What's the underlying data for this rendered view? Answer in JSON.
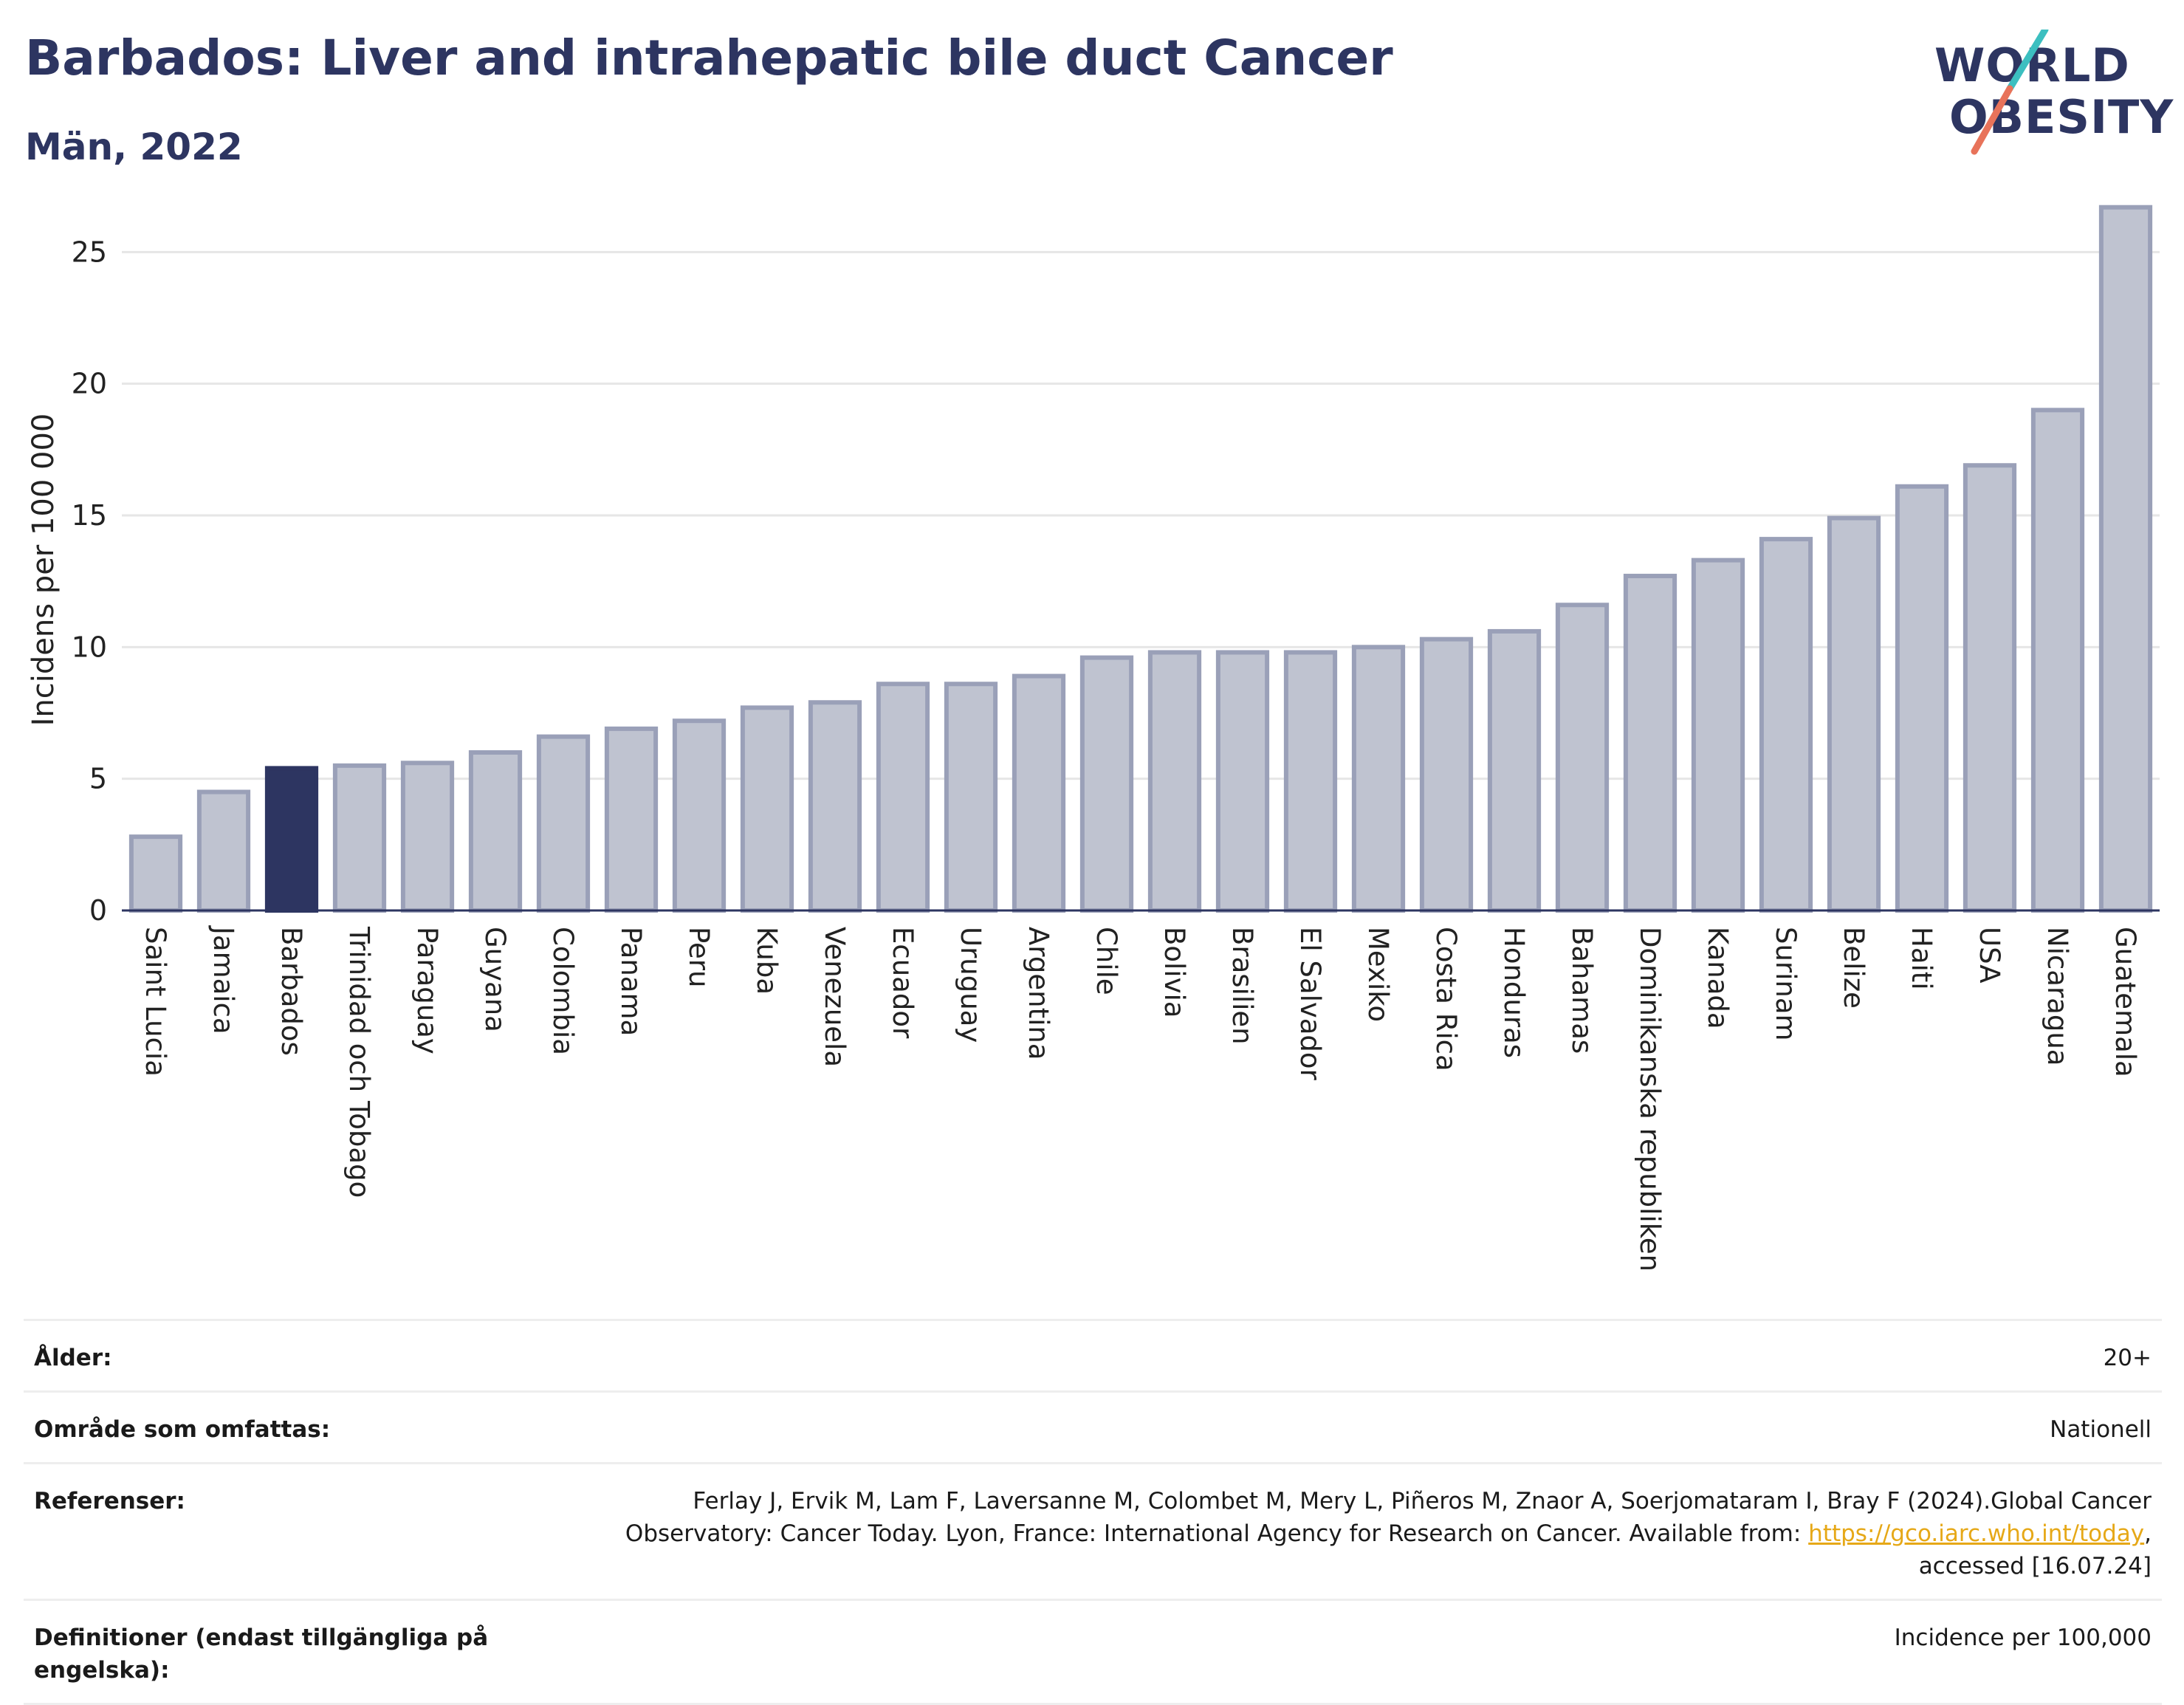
{
  "title": "Barbados: Liver and intrahepatic bile duct Cancer",
  "subtitle": "Män, 2022",
  "logo": {
    "line1": "WORLD",
    "line2": "OBESITY"
  },
  "colors": {
    "highlight": "#2d3561",
    "bar_fill": "#bfc3d0",
    "bar_stroke": "#9aa0b8",
    "title": "#2d3561",
    "link": "#e6a817",
    "logo_teal": "#3cbfc0",
    "logo_coral": "#e8735a"
  },
  "chart_data": {
    "type": "bar",
    "ylabel": "Incidens per 100 000",
    "ylim": [
      0,
      27
    ],
    "yticks": [
      0,
      5,
      10,
      15,
      20,
      25
    ],
    "highlight": "Barbados",
    "categories": [
      "Saint Lucia",
      "Jamaica",
      "Barbados",
      "Trinidad och Tobago",
      "Paraguay",
      "Guyana",
      "Colombia",
      "Panama",
      "Peru",
      "Kuba",
      "Venezuela",
      "Ecuador",
      "Uruguay",
      "Argentina",
      "Chile",
      "Bolivia",
      "Brasilien",
      "El Salvador",
      "Mexiko",
      "Costa Rica",
      "Honduras",
      "Bahamas",
      "Dominikanska republiken",
      "Kanada",
      "Surinam",
      "Belize",
      "Haiti",
      "USA",
      "Nicaragua",
      "Guatemala"
    ],
    "values": [
      2.8,
      4.5,
      5.4,
      5.5,
      5.6,
      6.0,
      6.6,
      6.9,
      7.2,
      7.7,
      7.9,
      8.6,
      8.6,
      8.9,
      9.6,
      9.8,
      9.8,
      9.8,
      10.0,
      10.3,
      10.6,
      11.6,
      12.7,
      13.3,
      14.1,
      14.9,
      16.1,
      16.9,
      19.0,
      26.7
    ],
    "grid": true
  },
  "meta": {
    "age_label": "Ålder:",
    "age_value": "20+",
    "area_label": "Område som omfattas:",
    "area_value": "Nationell",
    "ref_label": "Referenser:",
    "ref_text": "Ferlay J, Ervik M, Lam F, Laversanne M, Colombet M, Mery L, Piñeros M, Znaor A, Soerjomataram I, Bray F (2024).Global Cancer Observatory: Cancer Today. Lyon, France: International Agency for Research on Cancer. Available from: ",
    "ref_link": "https://gco.iarc.who.int/today",
    "ref_suffix": ", accessed [16.07.24]",
    "def_label": "Definitioner (endast tillgängliga på engelska):",
    "def_value": "Incidence per 100,000"
  }
}
